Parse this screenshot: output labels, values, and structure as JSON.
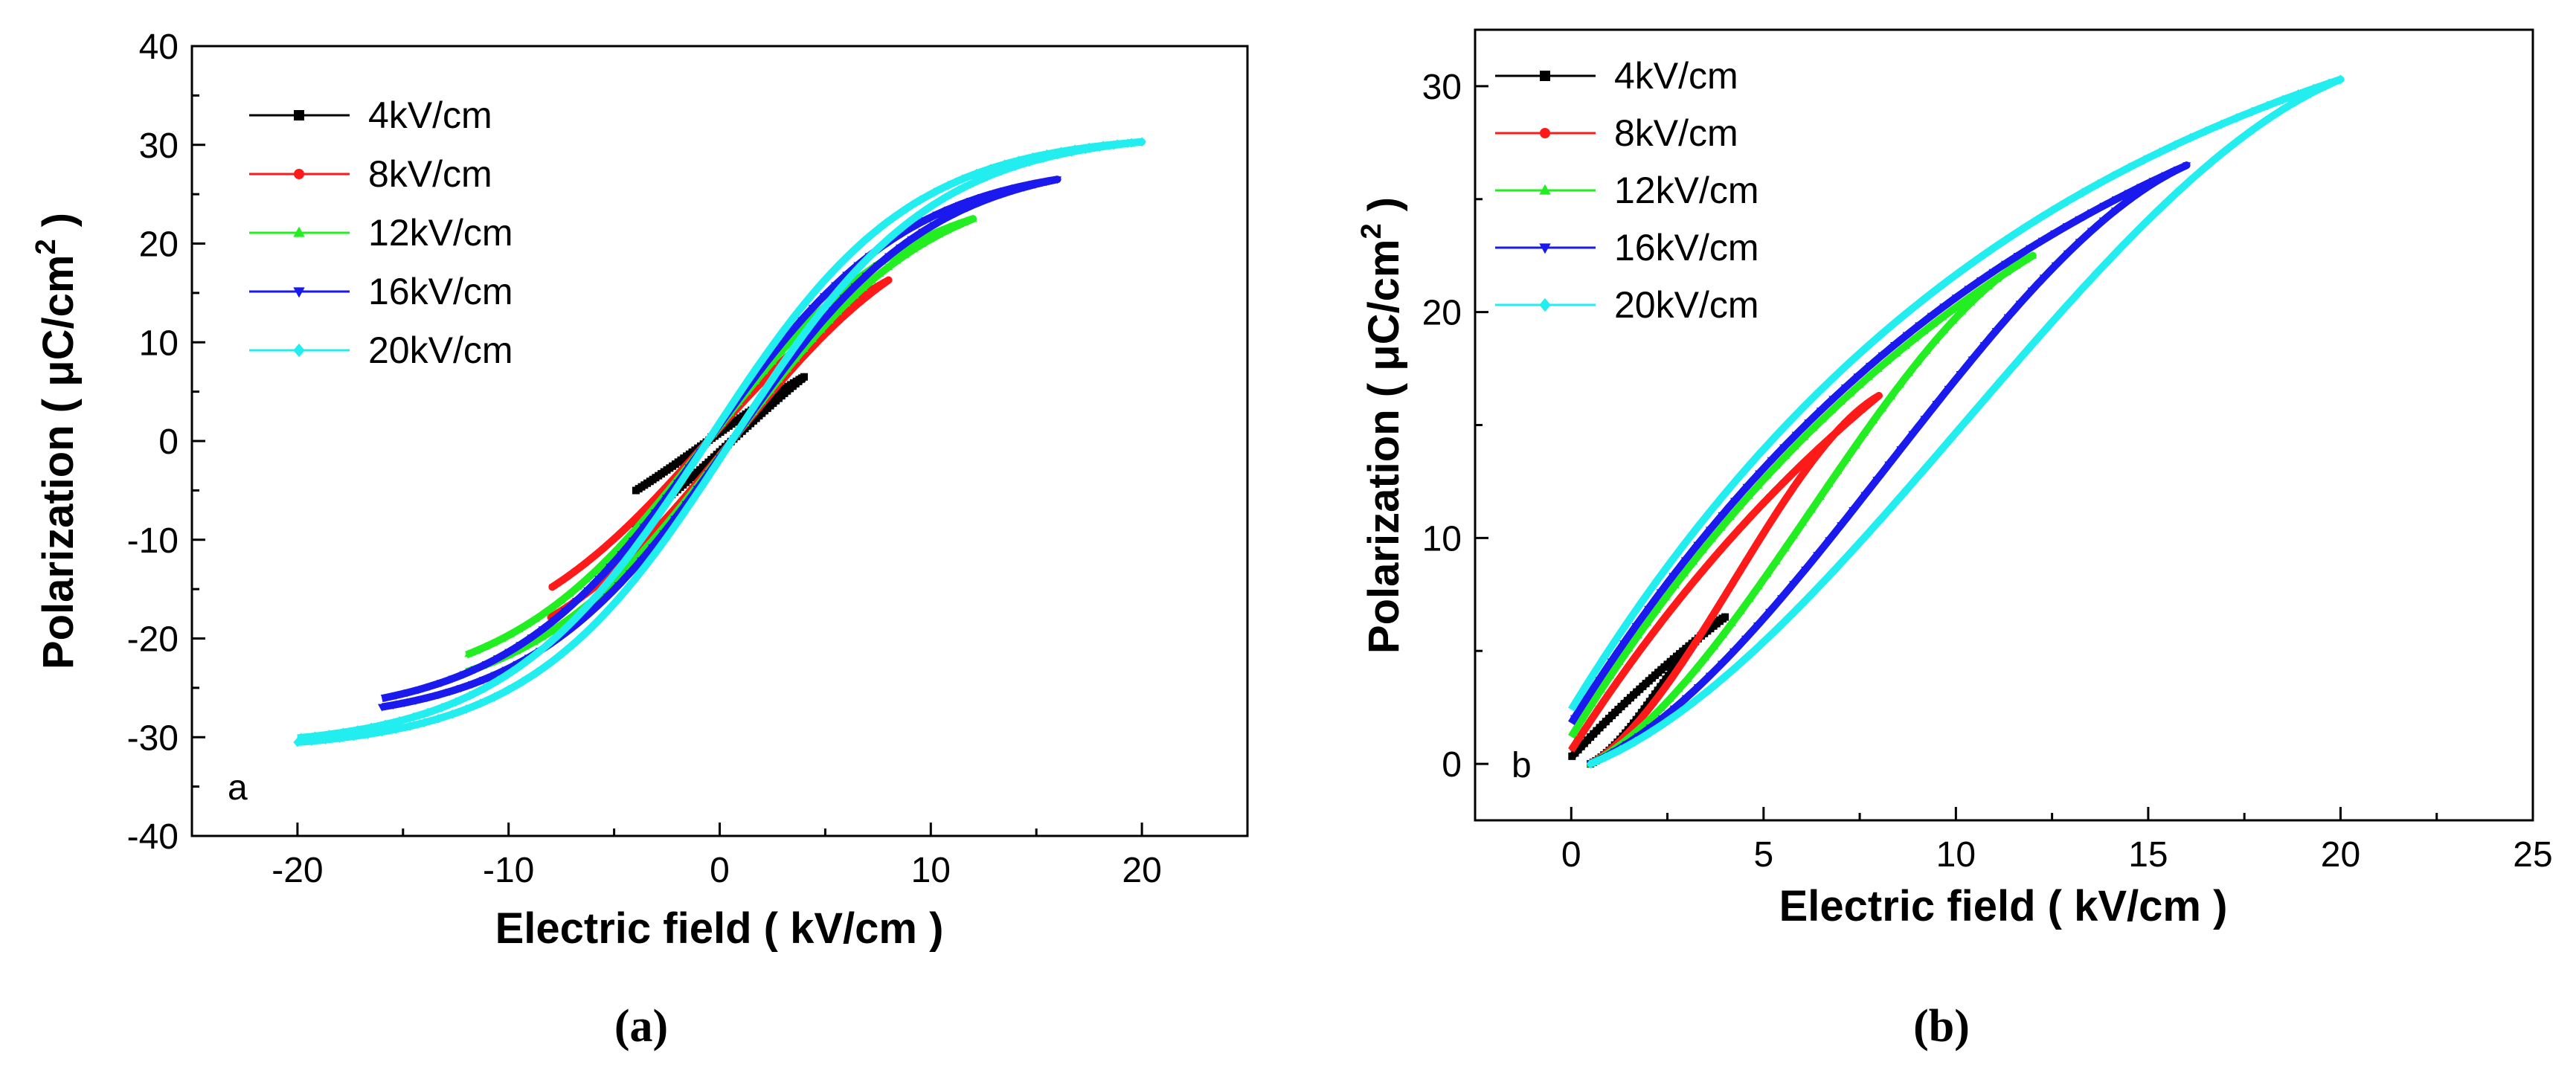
{
  "colors": {
    "4kV/cm": "#000000",
    "8kV/cm": "#ff1a1a",
    "12kV/cm": "#22ee22",
    "16kV/cm": "#1a1aee",
    "20kV/cm": "#22eef0"
  },
  "chart_data": [
    {
      "type": "line",
      "panel_label": "a",
      "caption": "(a)",
      "title": "",
      "xlabel": "Electric field ( kV/cm )",
      "ylabel": "Polarization ( μC/cm² )",
      "ylabel_parts": {
        "prefix": "Polarization ( μC/cm",
        "sup": "2",
        "suffix": " )"
      },
      "xlim": [
        -25,
        25
      ],
      "ylim": [
        -40,
        40
      ],
      "xticks": [
        -20,
        -10,
        0,
        10,
        20
      ],
      "yticks": [
        -40,
        -30,
        -20,
        -10,
        0,
        10,
        20,
        30,
        40
      ],
      "legend_position": "top-left",
      "loop": "bipolar",
      "series": [
        {
          "name": "4kV/cm",
          "marker": "square",
          "emax": 4,
          "pmax": 6.5
        },
        {
          "name": "8kV/cm",
          "marker": "circle",
          "emax": 8,
          "pmax": 16.3
        },
        {
          "name": "12kV/cm",
          "marker": "triangle-up",
          "emax": 12,
          "pmax": 22.5
        },
        {
          "name": "16kV/cm",
          "marker": "triangle-down",
          "emax": 16,
          "pmax": 26.5
        },
        {
          "name": "20kV/cm",
          "marker": "diamond",
          "emax": 20,
          "pmax": 30.3
        }
      ]
    },
    {
      "type": "line",
      "panel_label": "b",
      "caption": "(b)",
      "title": "",
      "xlabel": "Electric field ( kV/cm )",
      "ylabel": "Polarization ( μC/cm² )",
      "ylabel_parts": {
        "prefix": "Polarization ( μC/cm",
        "sup": "2",
        "suffix": " )"
      },
      "xlim": [
        -2.5,
        25
      ],
      "ylim": [
        -2.5,
        32.5
      ],
      "xticks": [
        0,
        5,
        10,
        15,
        20,
        25
      ],
      "yticks": [
        0,
        10,
        20,
        30
      ],
      "legend_position": "top-left",
      "loop": "unipolar",
      "series": [
        {
          "name": "4kV/cm",
          "marker": "square",
          "emax": 4,
          "pmax": 6.5,
          "p_end": 0.3
        },
        {
          "name": "8kV/cm",
          "marker": "circle",
          "emax": 8,
          "pmax": 16.3,
          "p_end": 0.6
        },
        {
          "name": "12kV/cm",
          "marker": "triangle-up",
          "emax": 12,
          "pmax": 22.5,
          "p_end": 1.2
        },
        {
          "name": "16kV/cm",
          "marker": "triangle-down",
          "emax": 16,
          "pmax": 26.5,
          "p_end": 1.8
        },
        {
          "name": "20kV/cm",
          "marker": "diamond",
          "emax": 20,
          "pmax": 30.3,
          "p_end": 2.4
        }
      ]
    }
  ]
}
